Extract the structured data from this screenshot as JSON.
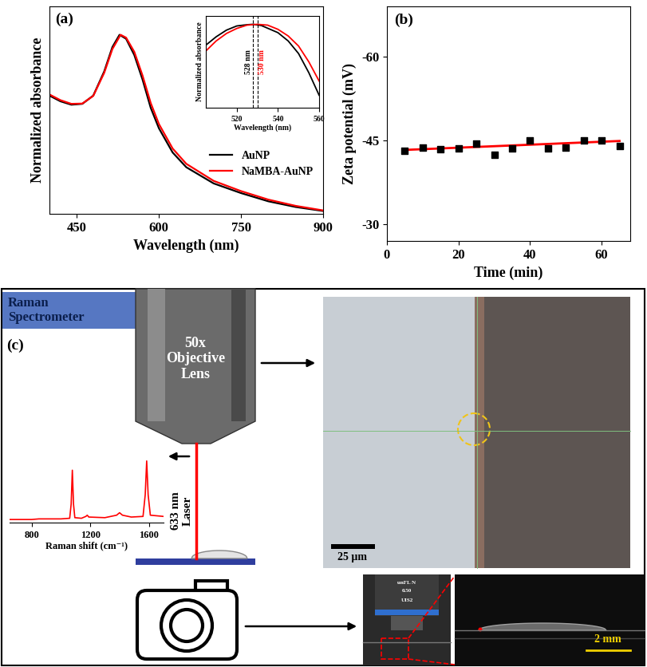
{
  "chart_data": [
    {
      "panel_label": "(a)",
      "type": "line",
      "xlabel": "Wavelength (nm)",
      "ylabel": "Normalized absorbance",
      "xlim": [
        400,
        900
      ],
      "xticks": [
        450,
        600,
        750,
        900
      ],
      "ylim": [
        0.37,
        1.1
      ],
      "tick_labels": "x",
      "legend": "lower right",
      "series": [
        {
          "name": "AuNP",
          "color": "#000000",
          "x": [
            400,
            420,
            440,
            460,
            480,
            500,
            515,
            528,
            540,
            555,
            570,
            585,
            600,
            625,
            650,
            700,
            750,
            800,
            850,
            900
          ],
          "values": [
            0.786,
            0.766,
            0.754,
            0.757,
            0.786,
            0.871,
            0.957,
            1.0,
            0.986,
            0.929,
            0.843,
            0.743,
            0.671,
            0.586,
            0.534,
            0.477,
            0.443,
            0.414,
            0.394,
            0.38
          ]
        },
        {
          "name": "NaMBA-AuNP",
          "color": "#ff0000",
          "x": [
            400,
            420,
            440,
            460,
            480,
            500,
            515,
            530,
            540,
            555,
            570,
            585,
            600,
            625,
            650,
            700,
            750,
            800,
            850,
            900
          ],
          "values": [
            0.79,
            0.77,
            0.757,
            0.758,
            0.785,
            0.866,
            0.95,
            1.0,
            0.99,
            0.94,
            0.857,
            0.76,
            0.686,
            0.6,
            0.546,
            0.486,
            0.45,
            0.42,
            0.398,
            0.382
          ]
        }
      ],
      "inset": {
        "type": "line",
        "xlabel": "Wavelength (nm)",
        "ylabel": "Normalized absorbance",
        "xlim": [
          505,
          560
        ],
        "xticks": [
          520,
          540,
          560
        ],
        "ylim": [
          0.9,
          1.01
        ],
        "tick_labels": "x",
        "series": [
          {
            "color": "#000000",
            "x": [
              505,
              510,
              515,
              520,
              525,
              528,
              532,
              540,
              545,
              550,
              555,
              560
            ],
            "values": [
              0.975,
              0.985,
              0.993,
              0.998,
              0.9995,
              1.0,
              0.9985,
              0.99,
              0.98,
              0.965,
              0.942,
              0.915
            ]
          },
          {
            "color": "#ff0000",
            "x": [
              505,
              510,
              515,
              520,
              525,
              530,
              535,
              540,
              545,
              550,
              555,
              560
            ],
            "values": [
              0.968,
              0.98,
              0.989,
              0.995,
              0.999,
              1.0,
              0.999,
              0.994,
              0.986,
              0.974,
              0.955,
              0.932
            ]
          }
        ],
        "vlines": [
          {
            "x": 528,
            "label": "528 nm",
            "color": "#000000"
          },
          {
            "x": 530,
            "label": "530 nm",
            "color": "#ff0000"
          }
        ]
      }
    },
    {
      "panel_label": "(b)",
      "type": "scatter",
      "xlabel": "Time (min)",
      "ylabel": "Zeta potential (mV)",
      "xlim": [
        0,
        68
      ],
      "xticks": [
        0,
        20,
        40,
        60
      ],
      "ylim": [
        -27,
        -69
      ],
      "yticks": [
        -60,
        -45,
        -30
      ],
      "series": [
        {
          "type": "scatter",
          "color": "#000000",
          "marker": "square",
          "x": [
            5,
            10,
            15,
            20,
            25,
            30,
            35,
            40,
            45,
            50,
            55,
            60,
            65
          ],
          "values": [
            -43.1,
            -43.7,
            -43.4,
            -43.6,
            -44.4,
            -42.5,
            -43.6,
            -45.0,
            -43.6,
            -43.7,
            -45.0,
            -45.0,
            -44.0
          ]
        },
        {
          "type": "line",
          "color": "#ff0000",
          "x": [
            5,
            65
          ],
          "values": [
            -43.3,
            -44.9
          ]
        }
      ]
    }
  ],
  "diagram": {
    "panel_label": "(c)",
    "spectrometer": "Raman Spectrometer",
    "objective": "50x Objective Lens",
    "laser": "633 nm Laser",
    "spectrum": {
      "type": "line",
      "xlabel": "Raman shift (cm⁻¹)",
      "xlim": [
        650,
        1700
      ],
      "xticks": [
        800,
        1200,
        1600
      ],
      "ylim": [
        0,
        1.1
      ],
      "tick_labels": "x",
      "color": "#ff0000",
      "x": [
        650,
        800,
        850,
        1000,
        1060,
        1070,
        1078,
        1086,
        1095,
        1140,
        1170,
        1180,
        1190,
        1300,
        1380,
        1400,
        1420,
        1480,
        1560,
        1575,
        1585,
        1595,
        1610,
        1700
      ],
      "values": [
        0.05,
        0.05,
        0.06,
        0.06,
        0.07,
        0.3,
        0.85,
        0.3,
        0.08,
        0.07,
        0.1,
        0.12,
        0.09,
        0.08,
        0.12,
        0.16,
        0.12,
        0.09,
        0.1,
        0.45,
        1.0,
        0.45,
        0.12,
        0.1
      ]
    },
    "microscope_image": {
      "scale_bar": "25 µm"
    },
    "photo": {
      "lens_text": [
        "unFL N",
        "0.50",
        "UIS2"
      ],
      "scale_bar": "2 mm"
    }
  }
}
